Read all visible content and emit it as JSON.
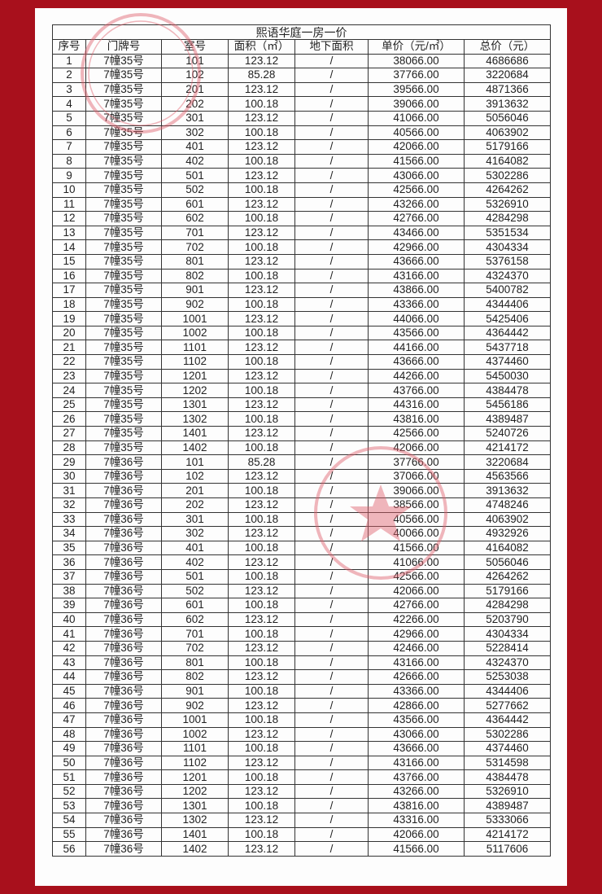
{
  "title": "熙语华庭一房一价",
  "headers": [
    "序号",
    "门牌号",
    "室号",
    "面积（㎡）",
    "地下面积",
    "单价（元/㎡）",
    "总价（元）"
  ],
  "rows": [
    [
      "1",
      "7幢35号",
      "101",
      "123.12",
      "/",
      "38066.00",
      "4686686"
    ],
    [
      "2",
      "7幢35号",
      "102",
      "85.28",
      "/",
      "37766.00",
      "3220684"
    ],
    [
      "3",
      "7幢35号",
      "201",
      "123.12",
      "/",
      "39566.00",
      "4871366"
    ],
    [
      "4",
      "7幢35号",
      "202",
      "100.18",
      "/",
      "39066.00",
      "3913632"
    ],
    [
      "5",
      "7幢35号",
      "301",
      "123.12",
      "/",
      "41066.00",
      "5056046"
    ],
    [
      "6",
      "7幢35号",
      "302",
      "100.18",
      "/",
      "40566.00",
      "4063902"
    ],
    [
      "7",
      "7幢35号",
      "401",
      "123.12",
      "/",
      "42066.00",
      "5179166"
    ],
    [
      "8",
      "7幢35号",
      "402",
      "100.18",
      "/",
      "41566.00",
      "4164082"
    ],
    [
      "9",
      "7幢35号",
      "501",
      "123.12",
      "/",
      "43066.00",
      "5302286"
    ],
    [
      "10",
      "7幢35号",
      "502",
      "100.18",
      "/",
      "42566.00",
      "4264262"
    ],
    [
      "11",
      "7幢35号",
      "601",
      "123.12",
      "/",
      "43266.00",
      "5326910"
    ],
    [
      "12",
      "7幢35号",
      "602",
      "100.18",
      "/",
      "42766.00",
      "4284298"
    ],
    [
      "13",
      "7幢35号",
      "701",
      "123.12",
      "/",
      "43466.00",
      "5351534"
    ],
    [
      "14",
      "7幢35号",
      "702",
      "100.18",
      "/",
      "42966.00",
      "4304334"
    ],
    [
      "15",
      "7幢35号",
      "801",
      "123.12",
      "/",
      "43666.00",
      "5376158"
    ],
    [
      "16",
      "7幢35号",
      "802",
      "100.18",
      "/",
      "43166.00",
      "4324370"
    ],
    [
      "17",
      "7幢35号",
      "901",
      "123.12",
      "/",
      "43866.00",
      "5400782"
    ],
    [
      "18",
      "7幢35号",
      "902",
      "100.18",
      "/",
      "43366.00",
      "4344406"
    ],
    [
      "19",
      "7幢35号",
      "1001",
      "123.12",
      "/",
      "44066.00",
      "5425406"
    ],
    [
      "20",
      "7幢35号",
      "1002",
      "100.18",
      "/",
      "43566.00",
      "4364442"
    ],
    [
      "21",
      "7幢35号",
      "1101",
      "123.12",
      "/",
      "44166.00",
      "5437718"
    ],
    [
      "22",
      "7幢35号",
      "1102",
      "100.18",
      "/",
      "43666.00",
      "4374460"
    ],
    [
      "23",
      "7幢35号",
      "1201",
      "123.12",
      "/",
      "44266.00",
      "5450030"
    ],
    [
      "24",
      "7幢35号",
      "1202",
      "100.18",
      "/",
      "43766.00",
      "4384478"
    ],
    [
      "25",
      "7幢35号",
      "1301",
      "123.12",
      "/",
      "44316.00",
      "5456186"
    ],
    [
      "26",
      "7幢35号",
      "1302",
      "100.18",
      "/",
      "43816.00",
      "4389487"
    ],
    [
      "27",
      "7幢35号",
      "1401",
      "123.12",
      "/",
      "42566.00",
      "5240726"
    ],
    [
      "28",
      "7幢35号",
      "1402",
      "100.18",
      "/",
      "42066.00",
      "4214172"
    ],
    [
      "29",
      "7幢36号",
      "101",
      "85.28",
      "/",
      "37766.00",
      "3220684"
    ],
    [
      "30",
      "7幢36号",
      "102",
      "123.12",
      "/",
      "37066.00",
      "4563566"
    ],
    [
      "31",
      "7幢36号",
      "201",
      "100.18",
      "/",
      "39066.00",
      "3913632"
    ],
    [
      "32",
      "7幢36号",
      "202",
      "123.12",
      "/",
      "38566.00",
      "4748246"
    ],
    [
      "33",
      "7幢36号",
      "301",
      "100.18",
      "/",
      "40566.00",
      "4063902"
    ],
    [
      "34",
      "7幢36号",
      "302",
      "123.12",
      "/",
      "40066.00",
      "4932926"
    ],
    [
      "35",
      "7幢36号",
      "401",
      "100.18",
      "/",
      "41566.00",
      "4164082"
    ],
    [
      "36",
      "7幢36号",
      "402",
      "123.12",
      "/",
      "41066.00",
      "5056046"
    ],
    [
      "37",
      "7幢36号",
      "501",
      "100.18",
      "/",
      "42566.00",
      "4264262"
    ],
    [
      "38",
      "7幢36号",
      "502",
      "123.12",
      "/",
      "42066.00",
      "5179166"
    ],
    [
      "39",
      "7幢36号",
      "601",
      "100.18",
      "/",
      "42766.00",
      "4284298"
    ],
    [
      "40",
      "7幢36号",
      "602",
      "123.12",
      "/",
      "42266.00",
      "5203790"
    ],
    [
      "41",
      "7幢36号",
      "701",
      "100.18",
      "/",
      "42966.00",
      "4304334"
    ],
    [
      "42",
      "7幢36号",
      "702",
      "123.12",
      "/",
      "42466.00",
      "5228414"
    ],
    [
      "43",
      "7幢36号",
      "801",
      "100.18",
      "/",
      "43166.00",
      "4324370"
    ],
    [
      "44",
      "7幢36号",
      "802",
      "123.12",
      "/",
      "42666.00",
      "5253038"
    ],
    [
      "45",
      "7幢36号",
      "901",
      "100.18",
      "/",
      "43366.00",
      "4344406"
    ],
    [
      "46",
      "7幢36号",
      "902",
      "123.12",
      "/",
      "42866.00",
      "5277662"
    ],
    [
      "47",
      "7幢36号",
      "1001",
      "100.18",
      "/",
      "43566.00",
      "4364442"
    ],
    [
      "48",
      "7幢36号",
      "1002",
      "123.12",
      "/",
      "43066.00",
      "5302286"
    ],
    [
      "49",
      "7幢36号",
      "1101",
      "100.18",
      "/",
      "43666.00",
      "4374460"
    ],
    [
      "50",
      "7幢36号",
      "1102",
      "123.12",
      "/",
      "43166.00",
      "5314598"
    ],
    [
      "51",
      "7幢36号",
      "1201",
      "100.18",
      "/",
      "43766.00",
      "4384478"
    ],
    [
      "52",
      "7幢36号",
      "1202",
      "123.12",
      "/",
      "43266.00",
      "5326910"
    ],
    [
      "53",
      "7幢36号",
      "1301",
      "100.18",
      "/",
      "43816.00",
      "4389487"
    ],
    [
      "54",
      "7幢36号",
      "1302",
      "123.12",
      "/",
      "43316.00",
      "5333066"
    ],
    [
      "55",
      "7幢36号",
      "1401",
      "100.18",
      "/",
      "42066.00",
      "4214172"
    ],
    [
      "56",
      "7幢36号",
      "1402",
      "123.12",
      "/",
      "41566.00",
      "5117606"
    ]
  ],
  "colors": {
    "background": "#a8101c",
    "stamp": "#e0606c"
  }
}
